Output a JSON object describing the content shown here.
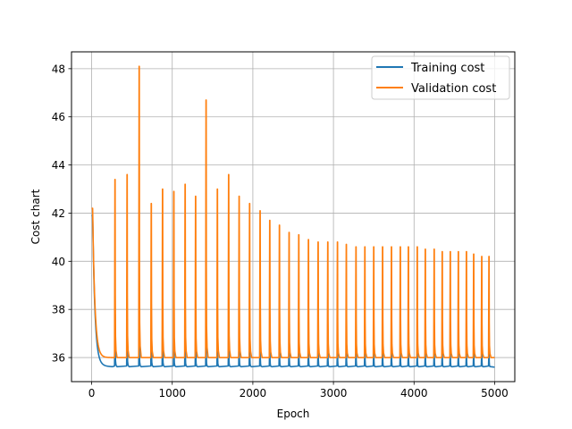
{
  "chart_data": {
    "type": "line",
    "xlabel": "Epoch",
    "ylabel": "Cost chart",
    "xlim": [
      -250,
      5250
    ],
    "ylim": [
      35.0,
      48.7
    ],
    "xticks": [
      0,
      1000,
      2000,
      3000,
      4000,
      5000
    ],
    "yticks": [
      36,
      38,
      40,
      42,
      44,
      46,
      48
    ],
    "grid": true,
    "legend_position": "top-right",
    "series": [
      {
        "name": "Training cost",
        "color": "#1f77b4",
        "start": 41.9,
        "floor": 35.6,
        "peaks": [
          [
            290,
            37.8
          ],
          [
            440,
            37.6
          ],
          [
            590,
            37.4
          ],
          [
            740,
            37.3
          ],
          [
            880,
            37.2
          ],
          [
            1020,
            37.1
          ],
          [
            1160,
            37.0
          ],
          [
            1290,
            36.9
          ],
          [
            1420,
            36.9
          ],
          [
            1560,
            36.8
          ],
          [
            1700,
            36.8
          ],
          [
            1830,
            36.7
          ],
          [
            1960,
            36.7
          ],
          [
            2090,
            36.6
          ],
          [
            2210,
            36.6
          ],
          [
            2330,
            36.6
          ],
          [
            2450,
            36.5
          ],
          [
            2570,
            36.5
          ],
          [
            2690,
            36.5
          ],
          [
            2810,
            36.5
          ],
          [
            2930,
            36.4
          ],
          [
            3050,
            36.4
          ],
          [
            3160,
            36.4
          ],
          [
            3280,
            36.4
          ],
          [
            3390,
            36.4
          ],
          [
            3500,
            36.3
          ],
          [
            3610,
            36.3
          ],
          [
            3720,
            36.3
          ],
          [
            3830,
            36.3
          ],
          [
            3930,
            36.3
          ],
          [
            4040,
            36.3
          ],
          [
            4140,
            36.3
          ],
          [
            4250,
            36.2
          ],
          [
            4350,
            36.2
          ],
          [
            4450,
            36.2
          ],
          [
            4550,
            36.2
          ],
          [
            4650,
            36.2
          ],
          [
            4740,
            36.2
          ],
          [
            4840,
            36.2
          ],
          [
            4930,
            36.2
          ]
        ]
      },
      {
        "name": "Validation cost",
        "color": "#ff7f0e",
        "start": 42.2,
        "floor": 36.0,
        "peaks": [
          [
            290,
            43.4
          ],
          [
            440,
            43.6
          ],
          [
            590,
            48.1
          ],
          [
            740,
            42.4
          ],
          [
            880,
            43.0
          ],
          [
            1020,
            42.9
          ],
          [
            1160,
            43.2
          ],
          [
            1290,
            42.7
          ],
          [
            1420,
            46.7
          ],
          [
            1560,
            43.0
          ],
          [
            1700,
            43.6
          ],
          [
            1830,
            42.7
          ],
          [
            1960,
            42.4
          ],
          [
            2090,
            42.1
          ],
          [
            2210,
            41.7
          ],
          [
            2330,
            41.5
          ],
          [
            2450,
            41.2
          ],
          [
            2570,
            41.1
          ],
          [
            2690,
            40.9
          ],
          [
            2810,
            40.8
          ],
          [
            2930,
            40.8
          ],
          [
            3050,
            40.8
          ],
          [
            3160,
            40.7
          ],
          [
            3280,
            40.6
          ],
          [
            3390,
            40.6
          ],
          [
            3500,
            40.6
          ],
          [
            3610,
            40.6
          ],
          [
            3720,
            40.6
          ],
          [
            3830,
            40.6
          ],
          [
            3930,
            40.6
          ],
          [
            4040,
            40.6
          ],
          [
            4140,
            40.5
          ],
          [
            4250,
            40.5
          ],
          [
            4350,
            40.4
          ],
          [
            4450,
            40.4
          ],
          [
            4550,
            40.4
          ],
          [
            4650,
            40.4
          ],
          [
            4740,
            40.3
          ],
          [
            4840,
            40.2
          ],
          [
            4930,
            40.2
          ]
        ]
      }
    ]
  }
}
